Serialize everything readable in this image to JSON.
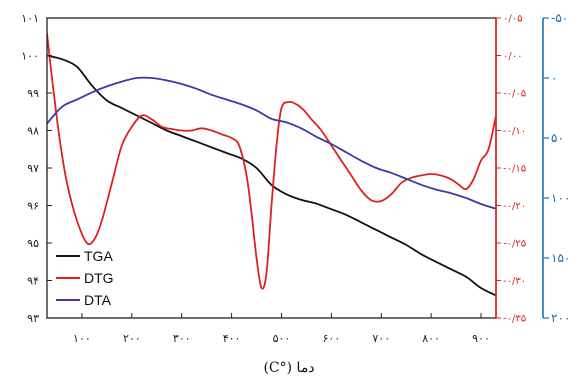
{
  "chart_data": {
    "type": "line",
    "xlabel": "(C°) دما",
    "x_ticks": [
      {
        "v": 100,
        "t": "۱۰۰"
      },
      {
        "v": 200,
        "t": "۲۰۰"
      },
      {
        "v": 300,
        "t": "۳۰۰"
      },
      {
        "v": 400,
        "t": "۴۰۰"
      },
      {
        "v": 500,
        "t": "۵۰۰"
      },
      {
        "v": 600,
        "t": "۶۰۰"
      },
      {
        "v": 700,
        "t": "۷۰۰"
      },
      {
        "v": 800,
        "t": "۸۰۰"
      },
      {
        "v": 900,
        "t": "۹۰۰"
      }
    ],
    "xlim": [
      30,
      930
    ],
    "y_left": {
      "lim": [
        93,
        101
      ],
      "ticks": [
        {
          "v": 101,
          "t": "۱۰۱"
        },
        {
          "v": 100,
          "t": "۱۰۰"
        },
        {
          "v": 99,
          "t": "۹۹"
        },
        {
          "v": 98,
          "t": "۹۸"
        },
        {
          "v": 97,
          "t": "۹۷"
        },
        {
          "v": 96,
          "t": "۹۶"
        },
        {
          "v": 95,
          "t": "۹۵"
        },
        {
          "v": 94,
          "t": "۹۴"
        },
        {
          "v": 93,
          "t": "۹۳"
        }
      ]
    },
    "y_right_dtg": {
      "lim": [
        -0.35,
        0.05
      ],
      "color": "#e02020",
      "ticks": [
        {
          "v": 0.05,
          "t": "۰/۰۵"
        },
        {
          "v": 0.0,
          "t": "۰/۰۰"
        },
        {
          "v": -0.05,
          "t": "-۰/۰۵"
        },
        {
          "v": -0.1,
          "t": "-۰/۱۰"
        },
        {
          "v": -0.15,
          "t": "-۰/۱۵"
        },
        {
          "v": -0.2,
          "t": "-۰/۲۰"
        },
        {
          "v": -0.25,
          "t": "-۰/۲۵"
        },
        {
          "v": -0.3,
          "t": "-۰/۳۰"
        },
        {
          "v": -0.35,
          "t": "-۰/۳۵"
        }
      ]
    },
    "y_right_dta": {
      "lim": [
        200,
        -50
      ],
      "color": "#1b6fb3",
      "ticks": [
        {
          "v": -50,
          "t": "-۵۰"
        },
        {
          "v": 0,
          "t": "۰"
        },
        {
          "v": 50,
          "t": "۵۰"
        },
        {
          "v": 100,
          "t": "۱۰۰"
        },
        {
          "v": 150,
          "t": "۱۵۰"
        },
        {
          "v": 200,
          "t": "۲۰۰"
        }
      ]
    },
    "series": [
      {
        "name": "TGA",
        "axis": "left",
        "color": "#111111",
        "x": [
          30,
          60,
          90,
          120,
          150,
          180,
          210,
          240,
          270,
          300,
          330,
          360,
          390,
          420,
          450,
          480,
          510,
          540,
          570,
          600,
          630,
          660,
          690,
          720,
          750,
          780,
          810,
          840,
          870,
          900,
          930
        ],
        "y": [
          100.0,
          99.9,
          99.7,
          99.2,
          98.8,
          98.6,
          98.4,
          98.2,
          98.0,
          97.85,
          97.7,
          97.55,
          97.4,
          97.25,
          97.0,
          96.55,
          96.3,
          96.15,
          96.05,
          95.9,
          95.75,
          95.55,
          95.35,
          95.15,
          94.95,
          94.7,
          94.5,
          94.3,
          94.1,
          93.8,
          93.6
        ]
      },
      {
        "name": "DTG",
        "axis": "right_dtg",
        "color": "#e02020",
        "x": [
          30,
          40,
          55,
          70,
          90,
          110,
          125,
          140,
          160,
          180,
          200,
          220,
          240,
          260,
          280,
          300,
          320,
          340,
          360,
          380,
          400,
          415,
          430,
          440,
          450,
          460,
          470,
          480,
          490,
          500,
          515,
          530,
          545,
          560,
          580,
          600,
          620,
          640,
          660,
          680,
          700,
          720,
          740,
          760,
          780,
          800,
          820,
          840,
          855,
          870,
          885,
          900,
          915,
          930
        ],
        "y": [
          0.03,
          -0.03,
          -0.11,
          -0.17,
          -0.22,
          -0.25,
          -0.245,
          -0.22,
          -0.17,
          -0.12,
          -0.095,
          -0.08,
          -0.085,
          -0.095,
          -0.098,
          -0.1,
          -0.1,
          -0.097,
          -0.1,
          -0.105,
          -0.11,
          -0.12,
          -0.16,
          -0.21,
          -0.27,
          -0.31,
          -0.29,
          -0.2,
          -0.12,
          -0.07,
          -0.062,
          -0.065,
          -0.073,
          -0.085,
          -0.1,
          -0.12,
          -0.14,
          -0.16,
          -0.18,
          -0.193,
          -0.194,
          -0.185,
          -0.17,
          -0.163,
          -0.16,
          -0.158,
          -0.16,
          -0.165,
          -0.172,
          -0.178,
          -0.165,
          -0.14,
          -0.125,
          -0.08
        ]
      },
      {
        "name": "DTA",
        "axis": "right_dta",
        "color": "#3a3aa8",
        "x": [
          30,
          60,
          90,
          120,
          150,
          180,
          210,
          240,
          270,
          300,
          330,
          360,
          390,
          420,
          450,
          480,
          510,
          540,
          570,
          600,
          630,
          660,
          690,
          720,
          750,
          780,
          810,
          840,
          870,
          900,
          930
        ],
        "y": [
          38,
          24,
          18,
          12,
          7,
          3,
          0,
          0,
          2,
          5,
          9,
          14,
          18,
          22,
          27,
          34,
          37,
          42,
          49,
          55,
          62,
          69,
          75,
          79,
          84,
          89,
          93,
          96,
          100,
          105,
          109
        ]
      }
    ],
    "legend": {
      "position": "bottom-left",
      "entries": [
        "TGA",
        "DTG",
        "DTA"
      ]
    },
    "grid": false
  }
}
